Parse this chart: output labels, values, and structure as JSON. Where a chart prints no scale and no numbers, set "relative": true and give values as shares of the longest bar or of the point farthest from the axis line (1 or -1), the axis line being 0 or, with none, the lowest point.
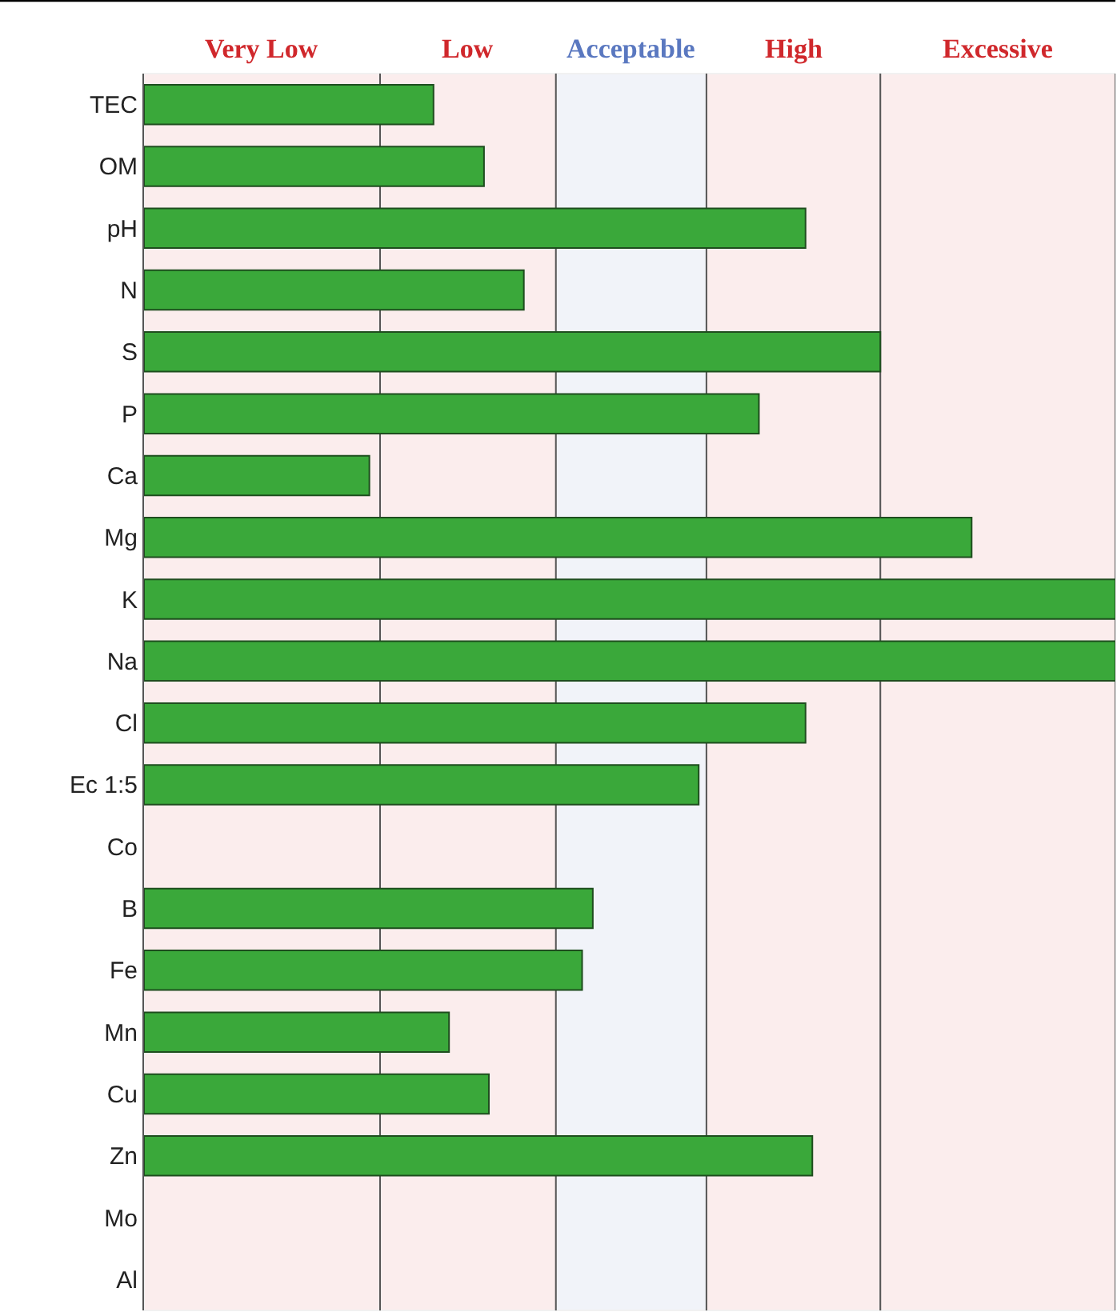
{
  "chart_data": {
    "type": "bar",
    "orientation": "horizontal",
    "relative": true,
    "categories": [
      "TEC",
      "OM",
      "pH",
      "N",
      "S",
      "P",
      "Ca",
      "Mg",
      "K",
      "Na",
      "Cl",
      "Ec 1:5",
      "Co",
      "B",
      "Fe",
      "Mn",
      "Cu",
      "Zn",
      "Mo",
      "Al"
    ],
    "series": [
      {
        "color": "#3aa83a",
        "values": [
          0.298,
          0.35,
          0.681,
          0.391,
          0.758,
          0.633,
          0.232,
          0.852,
          1,
          1,
          0.681,
          0.571,
          null,
          0.462,
          0.451,
          0.314,
          0.355,
          0.688,
          null,
          null
        ]
      }
    ],
    "bands": [
      {
        "axis": "x",
        "from": 0,
        "to": 0.243,
        "label": "Very Low",
        "color": "#d0282c"
      },
      {
        "axis": "x",
        "from": 0.243,
        "to": 0.424,
        "label": "Low",
        "color": "#d0282c"
      },
      {
        "axis": "x",
        "from": 0.424,
        "to": 0.579,
        "label": "Acceptable",
        "color": "#5a78c0"
      },
      {
        "axis": "x",
        "from": 0.579,
        "to": 0.758,
        "label": "High",
        "color": "#d0282c"
      },
      {
        "axis": "x",
        "from": 0.758,
        "to": 1,
        "label": "Excessive",
        "color": "#d0282c"
      }
    ],
    "grid": false
  }
}
